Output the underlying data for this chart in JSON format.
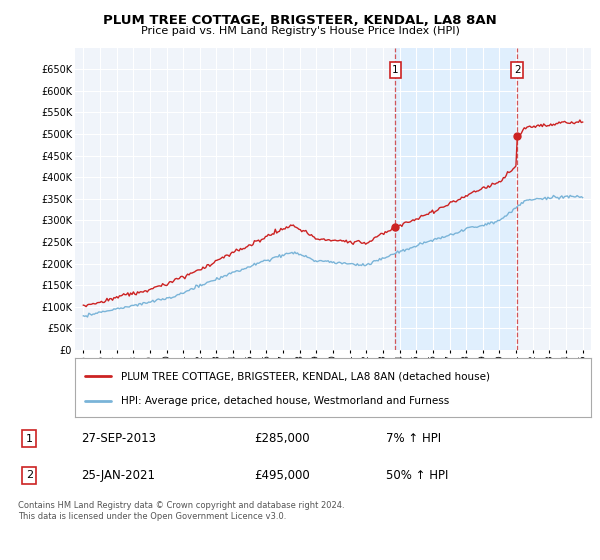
{
  "title1": "PLUM TREE COTTAGE, BRIGSTEER, KENDAL, LA8 8AN",
  "title2": "Price paid vs. HM Land Registry's House Price Index (HPI)",
  "legend1": "PLUM TREE COTTAGE, BRIGSTEER, KENDAL, LA8 8AN (detached house)",
  "legend2": "HPI: Average price, detached house, Westmorland and Furness",
  "transaction1_date": "27-SEP-2013",
  "transaction1_price": 285000,
  "transaction1_hpi": "7% ↑ HPI",
  "transaction2_date": "25-JAN-2021",
  "transaction2_price": 495000,
  "transaction2_hpi": "50% ↑ HPI",
  "footnote": "Contains HM Land Registry data © Crown copyright and database right 2024.\nThis data is licensed under the Open Government Licence v3.0.",
  "vline1_x": 2013.75,
  "vline2_x": 2021.07,
  "hpi_color": "#7ab4d8",
  "price_color": "#cc2222",
  "vline_color": "#cc2222",
  "shade_color": "#ddeeff",
  "background_color": "#ffffff",
  "plot_bg_color": "#f0f4fa",
  "ylim": [
    0,
    700000
  ],
  "xlim_start": 1994.5,
  "xlim_end": 2025.5,
  "yticks": [
    0,
    50000,
    100000,
    150000,
    200000,
    250000,
    300000,
    350000,
    400000,
    450000,
    500000,
    550000,
    600000,
    650000
  ],
  "xticks": [
    1995,
    1996,
    1997,
    1998,
    1999,
    2000,
    2001,
    2002,
    2003,
    2004,
    2005,
    2006,
    2007,
    2008,
    2009,
    2010,
    2011,
    2012,
    2013,
    2014,
    2015,
    2016,
    2017,
    2018,
    2019,
    2020,
    2021,
    2022,
    2023,
    2024,
    2025
  ]
}
